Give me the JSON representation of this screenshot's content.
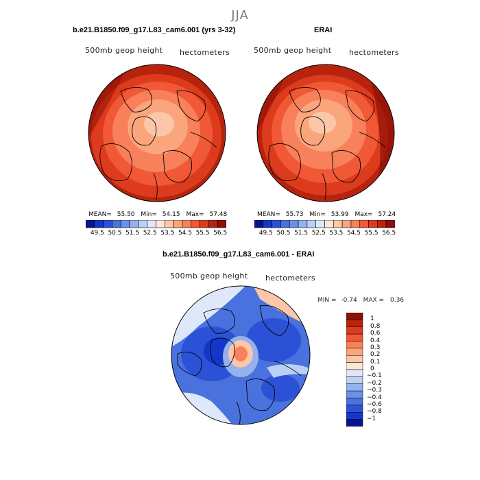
{
  "season": "JJA",
  "colors": {
    "pos": [
      "#fde7d6",
      "#fcc6a8",
      "#fba57d",
      "#f8805a",
      "#f05836",
      "#dd3b1d",
      "#b8230e",
      "#8c1006"
    ],
    "neg": [
      "#dfe8fa",
      "#bad0f5",
      "#93b2ee",
      "#6b91e6",
      "#4a72de",
      "#2b52d6",
      "#1537c9",
      "#06148e"
    ]
  },
  "panels": [
    {
      "title": "b.e21.B1850.f09_g17.L83_cam6.001 (yrs 3-32)",
      "left_label": "500mb geop height",
      "right_label": "hectometers",
      "stats": {
        "mean_label": "MEAN=",
        "mean": "55.50",
        "min_label": "Min=",
        "min": "54.15",
        "max_label": "Max=",
        "max": "57.48"
      }
    },
    {
      "title": "ERAI",
      "left_label": "500mb geop height",
      "right_label": "hectometers",
      "stats": {
        "mean_label": "MEAN=",
        "mean": "55.73",
        "min_label": "Min=",
        "min": "53.99",
        "max_label": "Max=",
        "max": "57.24"
      }
    }
  ],
  "abs_colorbar": {
    "ticks": [
      "49.5",
      "50.5",
      "51.5",
      "52.5",
      "53.5",
      "54.5",
      "55.5",
      "56.5"
    ]
  },
  "diff_panel": {
    "title": "b.e21.B1850.f09_g17.L83_cam6.001 - ERAI",
    "left_label": "500mb geop height",
    "right_label": "hectometers",
    "stats": {
      "min_label": "MIN =",
      "min": "-0.74",
      "max_label": "MAX =",
      "max": "0.36"
    }
  },
  "diff_colorbar": {
    "ticks": [
      "1",
      "0.8",
      "0.6",
      "0.4",
      "0.3",
      "0.2",
      "0.1",
      "0",
      "−0.1",
      "−0.2",
      "−0.3",
      "−0.4",
      "−0.6",
      "−0.8",
      "−1"
    ]
  },
  "chart_data": [
    {
      "type": "heatmap",
      "title": "b.e21.B1850.f09_g17.L83_cam6.001 (yrs 3-32)",
      "projection": "north polar stereographic",
      "variable": "500mb geop height",
      "units": "hectometers",
      "mean": 55.5,
      "min": 54.15,
      "max": 57.48,
      "levels": [
        49.5,
        50.0,
        50.5,
        51.0,
        51.5,
        52.0,
        52.5,
        53.0,
        53.5,
        54.0,
        54.5,
        55.0,
        55.5,
        56.0,
        56.5
      ]
    },
    {
      "type": "heatmap",
      "title": "ERAI",
      "projection": "north polar stereographic",
      "variable": "500mb geop height",
      "units": "hectometers",
      "mean": 55.73,
      "min": 53.99,
      "max": 57.24,
      "levels": [
        49.5,
        50.0,
        50.5,
        51.0,
        51.5,
        52.0,
        52.5,
        53.0,
        53.5,
        54.0,
        54.5,
        55.0,
        55.5,
        56.0,
        56.5
      ]
    },
    {
      "type": "heatmap",
      "title": "b.e21.B1850.f09_g17.L83_cam6.001 - ERAI",
      "projection": "north polar stereographic",
      "variable": "500mb geop height",
      "units": "hectometers",
      "min": -0.74,
      "max": 0.36,
      "levels": [
        -1,
        -0.8,
        -0.6,
        -0.4,
        -0.3,
        -0.2,
        -0.1,
        0,
        0.1,
        0.2,
        0.3,
        0.4,
        0.6,
        0.8,
        1
      ]
    }
  ]
}
